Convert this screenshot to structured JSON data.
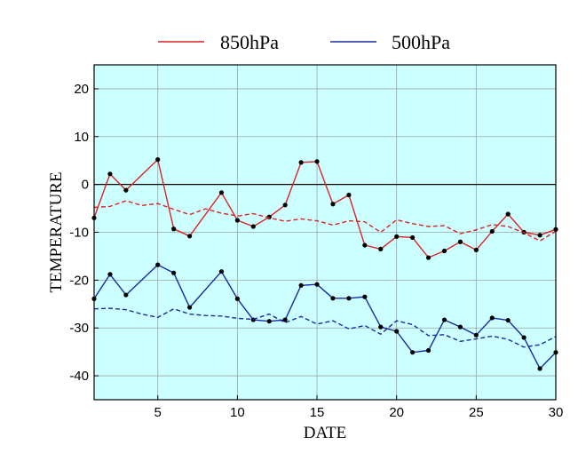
{
  "chart_data": {
    "type": "line",
    "xlabel": "DATE",
    "ylabel": "TEMPERATURE",
    "xlim": [
      1,
      30
    ],
    "ylim": [
      -45,
      25
    ],
    "xticks": [
      5,
      10,
      15,
      20,
      25,
      30
    ],
    "yticks": [
      -40,
      -30,
      -20,
      -10,
      0,
      10,
      20
    ],
    "grid": true,
    "legend_position": "top",
    "background_color": "#ccffff",
    "x": [
      1,
      2,
      3,
      4,
      5,
      6,
      7,
      8,
      9,
      10,
      11,
      12,
      13,
      14,
      15,
      16,
      17,
      18,
      19,
      20,
      21,
      22,
      23,
      24,
      25,
      26,
      27,
      28,
      29,
      30
    ],
    "series": [
      {
        "name": "850hPa",
        "color": "#dd2222",
        "style": "solid",
        "markers": true,
        "values": [
          -7,
          2.2,
          -1.2,
          null,
          5.2,
          -9.3,
          -10.8,
          null,
          -1.7,
          -7.5,
          -8.8,
          -6.8,
          -4.3,
          4.6,
          4.8,
          -4.1,
          -2.2,
          -12.7,
          -13.5,
          -10.9,
          -11.1,
          -15.3,
          -13.9,
          -12,
          -13.7,
          -9.8,
          -6.2,
          -10,
          -10.6,
          -9.4
        ]
      },
      {
        "name": "500hPa",
        "color": "#1a2aa8",
        "style": "solid",
        "markers": true,
        "values": [
          -23.9,
          -18.8,
          -23.1,
          null,
          -16.8,
          -18.5,
          -25.7,
          null,
          -18.2,
          -23.9,
          -28.3,
          -28.6,
          -28.3,
          -21.1,
          -20.9,
          -23.8,
          -23.8,
          -23.5,
          -29.8,
          -30.7,
          -35.1,
          -34.7,
          -28.3,
          -29.8,
          -31.5,
          -27.9,
          -28.4,
          -32,
          -38.5,
          -35.1
        ]
      },
      {
        "color": "#dd2222",
        "style": "dashed",
        "markers": false,
        "values": [
          -4.8,
          -4.6,
          -3.4,
          -4.4,
          -4,
          -5.2,
          -6.3,
          -5.1,
          -6,
          -6.6,
          -6.1,
          -7,
          -7.7,
          -7.2,
          -7.6,
          -8.5,
          -7.6,
          -7.8,
          -10,
          -7.4,
          -8.2,
          -8.8,
          -8.6,
          -10.3,
          -9.5,
          -8.4,
          -8.8,
          -10.1,
          -11.8,
          -9.8
        ]
      },
      {
        "color": "#1a2aa8",
        "style": "dashed",
        "markers": false,
        "values": [
          -26,
          -25.9,
          -26.2,
          -27.1,
          -27.8,
          -26,
          -27.1,
          -27.4,
          -27.5,
          -28,
          -28.2,
          -27.1,
          -28.9,
          -27.6,
          -29.2,
          -28.5,
          -30.2,
          -29.5,
          -31.3,
          -28.5,
          -29.3,
          -31.6,
          -31.4,
          -32.8,
          -32.3,
          -31.7,
          -32.4,
          -34,
          -33.5,
          -31.8
        ]
      }
    ]
  }
}
